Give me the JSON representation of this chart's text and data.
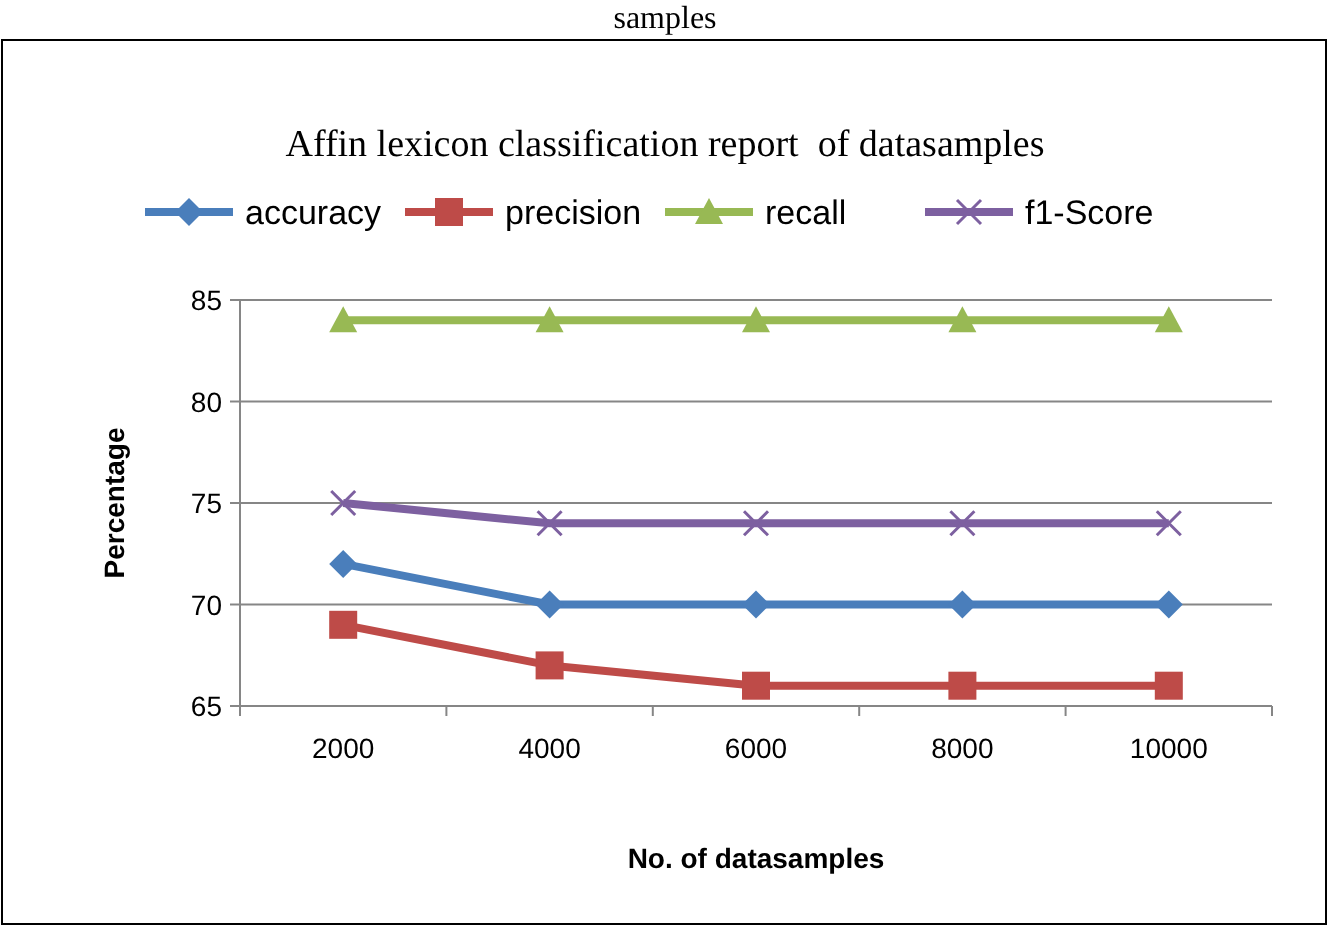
{
  "chart_data": {
    "type": "line",
    "title": "Affin lexicon classification report  of datasamples",
    "annotations": [
      "samples"
    ],
    "xlabel": "No. of datasamples",
    "ylabel": "Percentage",
    "categories": [
      "2000",
      "4000",
      "6000",
      "8000",
      "10000"
    ],
    "series": [
      {
        "name": "accuracy",
        "color": "#4a7ebb",
        "marker": "diamond",
        "values": [
          72,
          70,
          70,
          70,
          70
        ]
      },
      {
        "name": "precision",
        "color": "#be4b48",
        "marker": "square",
        "values": [
          69,
          67,
          66,
          66,
          66
        ]
      },
      {
        "name": "recall",
        "color": "#98b954",
        "marker": "triangle",
        "values": [
          84,
          84,
          84,
          84,
          84
        ]
      },
      {
        "name": "f1-Score",
        "color": "#7d60a0",
        "marker": "cross",
        "values": [
          75,
          74,
          74,
          74,
          74
        ]
      }
    ],
    "ylim": [
      65,
      85
    ],
    "yticks": [
      65,
      70,
      75,
      80,
      85
    ],
    "grid": "y",
    "legend": "top",
    "line_style": "solid"
  }
}
